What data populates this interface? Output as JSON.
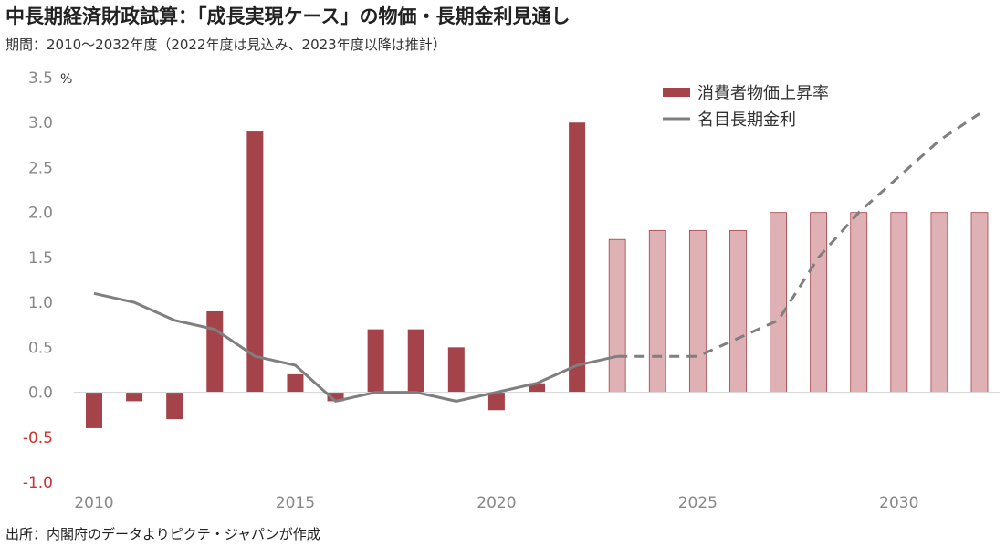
{
  "header": {
    "title": "中長期経済財政試算：「成長実現ケース」の物価・長期金利見通し",
    "subtitle": "期間：2010～2032年度（2022年度は見込み、2023年度以降は推計）"
  },
  "footer": {
    "source": "出所：内閣府のデータよりピクテ・ジャパンが作成"
  },
  "chart_data": {
    "type": "bar",
    "x": [
      2010,
      2011,
      2012,
      2013,
      2014,
      2015,
      2016,
      2017,
      2018,
      2019,
      2020,
      2021,
      2022,
      2023,
      2024,
      2025,
      2026,
      2027,
      2028,
      2029,
      2030,
      2031,
      2032
    ],
    "xticks": [
      "2010",
      "2015",
      "2020",
      "2025",
      "2030"
    ],
    "ylim": [
      -1.0,
      3.5
    ],
    "yticks": [
      "3.5",
      "3.0",
      "2.5",
      "2.0",
      "1.5",
      "1.0",
      "0.5",
      "0.0",
      "-0.5",
      "-1.0"
    ],
    "yunit": "%",
    "projection_start": 2023,
    "legend_position": "top-right",
    "series": [
      {
        "name": "消費者物価上昇率",
        "kind": "bar",
        "color": "#a5434a",
        "projection_color": "#dfb0b4",
        "values": [
          -0.4,
          -0.1,
          -0.3,
          0.9,
          2.9,
          0.2,
          -0.1,
          0.7,
          0.7,
          0.5,
          -0.2,
          0.1,
          3.0,
          1.7,
          1.8,
          1.8,
          1.8,
          2.0,
          2.0,
          2.0,
          2.0,
          2.0,
          2.0
        ]
      },
      {
        "name": "名目長期金利",
        "kind": "line",
        "color": "#7f7f7f",
        "values": [
          1.1,
          1.0,
          0.8,
          0.7,
          0.4,
          0.3,
          -0.1,
          0.0,
          0.0,
          -0.1,
          0.0,
          0.1,
          0.3,
          0.4,
          0.4,
          0.4,
          0.6,
          0.8,
          1.5,
          2.0,
          2.4,
          2.8,
          3.1
        ]
      }
    ]
  }
}
